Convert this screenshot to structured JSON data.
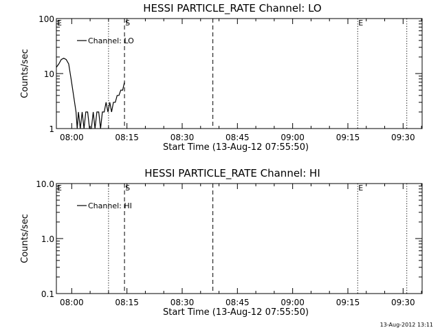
{
  "footer_timestamp": "13-Aug-2012 13:11",
  "chart_data": [
    {
      "type": "line",
      "title": "HESSI PARTICLE_RATE Channel: LO",
      "xlabel": "Start Time (13-Aug-12 07:55:50)",
      "ylabel": "Counts/sec",
      "yscale": "log",
      "xlim": [
        "07:55:50",
        "09:35:10"
      ],
      "ylim": [
        1,
        100
      ],
      "x_ticks": [
        "08:00",
        "08:15",
        "08:30",
        "08:45",
        "09:00",
        "09:15",
        "09:30"
      ],
      "y_ticks": [
        "1",
        "10",
        "100"
      ],
      "legend": {
        "entries": [
          "Channel: LO"
        ],
        "placement": "top-left"
      },
      "markers": [
        {
          "time": "08:10:00",
          "style": "dotted",
          "label": ""
        },
        {
          "time": "08:14:20",
          "style": "dashed",
          "label": "S"
        },
        {
          "time": "08:38:20",
          "style": "dashed",
          "label": ""
        },
        {
          "time": "09:17:40",
          "style": "dotted",
          "label": "E"
        },
        {
          "time": "09:31:00",
          "style": "dotted",
          "label": ""
        }
      ],
      "edge_labels": [
        "E"
      ],
      "series": [
        {
          "name": "Channel: LO",
          "points": [
            [
              "07:55:50",
              13
            ],
            [
              "07:56:30",
              15
            ],
            [
              "07:57:10",
              18
            ],
            [
              "07:57:50",
              19
            ],
            [
              "07:58:30",
              18
            ],
            [
              "07:59:10",
              15
            ],
            [
              "07:59:50",
              8
            ],
            [
              "08:00:30",
              4
            ],
            [
              "08:01:10",
              2
            ],
            [
              "08:01:30",
              1
            ],
            [
              "08:01:50",
              2
            ],
            [
              "08:02:20",
              1
            ],
            [
              "08:02:50",
              2
            ],
            [
              "08:03:20",
              1
            ],
            [
              "08:03:50",
              2
            ],
            [
              "08:04:20",
              2
            ],
            [
              "08:04:50",
              1
            ],
            [
              "08:05:20",
              1
            ],
            [
              "08:05:50",
              2
            ],
            [
              "08:06:20",
              1
            ],
            [
              "08:06:50",
              2
            ],
            [
              "08:07:20",
              2
            ],
            [
              "08:07:50",
              1
            ],
            [
              "08:08:20",
              2
            ],
            [
              "08:08:50",
              2
            ],
            [
              "08:09:20",
              3
            ],
            [
              "08:09:50",
              2
            ],
            [
              "08:10:20",
              3
            ],
            [
              "08:10:50",
              2
            ],
            [
              "08:11:20",
              3
            ],
            [
              "08:11:50",
              3
            ],
            [
              "08:12:20",
              4
            ],
            [
              "08:12:50",
              4
            ],
            [
              "08:13:20",
              5
            ],
            [
              "08:13:50",
              5
            ],
            [
              "08:14:20",
              7
            ]
          ]
        }
      ]
    },
    {
      "type": "line",
      "title": "HESSI PARTICLE_RATE Channel: HI",
      "xlabel": "Start Time (13-Aug-12 07:55:50)",
      "ylabel": "Counts/sec",
      "yscale": "log",
      "xlim": [
        "07:55:50",
        "09:35:10"
      ],
      "ylim": [
        0.1,
        10
      ],
      "x_ticks": [
        "08:00",
        "08:15",
        "08:30",
        "08:45",
        "09:00",
        "09:15",
        "09:30"
      ],
      "y_ticks": [
        "0.1",
        "1.0",
        "10.0"
      ],
      "legend": {
        "entries": [
          "Channel: HI"
        ],
        "placement": "top-left"
      },
      "markers": [
        {
          "time": "08:10:00",
          "style": "dotted",
          "label": ""
        },
        {
          "time": "08:14:20",
          "style": "dashed",
          "label": "S"
        },
        {
          "time": "08:38:20",
          "style": "dashed",
          "label": ""
        },
        {
          "time": "09:17:40",
          "style": "dotted",
          "label": "E"
        },
        {
          "time": "09:31:00",
          "style": "dotted",
          "label": ""
        }
      ],
      "edge_labels": [
        "E"
      ],
      "series": [
        {
          "name": "Channel: HI",
          "points": []
        }
      ]
    }
  ]
}
